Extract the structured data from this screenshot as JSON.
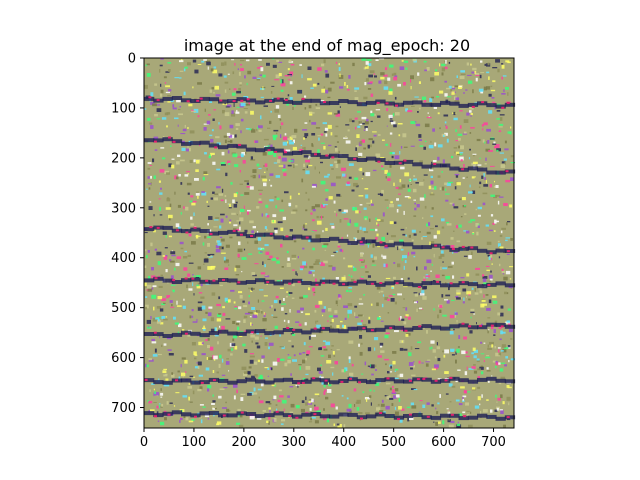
{
  "chart_data": {
    "type": "heatmap",
    "title": "image at the end of mag_epoch: 20",
    "xlabel": "",
    "ylabel": "",
    "xlim": [
      0,
      741
    ],
    "ylim": [
      741,
      0
    ],
    "x_ticks": [
      0,
      100,
      200,
      300,
      400,
      500,
      600,
      700
    ],
    "y_ticks": [
      0,
      100,
      200,
      300,
      400,
      500,
      600,
      700
    ],
    "grid": false,
    "legend": "none",
    "colors": {
      "base": "#a8a878",
      "palette": [
        "#c9c98e",
        "#8f8f5a",
        "#39ff7a",
        "#5fe3ff",
        "#ff3f9f",
        "#2a2a55",
        "#ffff66",
        "#9a4fd0",
        "#ffffff",
        "#7a7a48"
      ],
      "dark_band": "#1e1f55",
      "band_accent": "#e0206e"
    },
    "dark_bands": [
      {
        "x": [
          0,
          741
        ],
        "y": [
          82,
          95
        ]
      },
      {
        "x": [
          0,
          741
        ],
        "y": [
          162,
          232
        ]
      },
      {
        "x": [
          0,
          741
        ],
        "y": [
          340,
          390
        ]
      },
      {
        "x": [
          0,
          741
        ],
        "y": [
          445,
          455
        ]
      },
      {
        "x": [
          0,
          741
        ],
        "y": [
          555,
          535
        ]
      },
      {
        "x": [
          0,
          741
        ],
        "y": [
          648,
          645
        ]
      },
      {
        "x": [
          0,
          741
        ],
        "y": [
          712,
          720
        ]
      }
    ]
  }
}
